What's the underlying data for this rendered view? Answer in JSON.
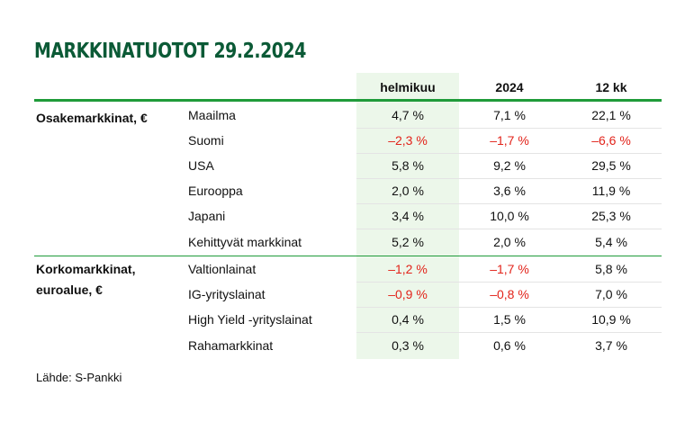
{
  "title": "MARKKINATUOTOT 29.2.2024",
  "columns": [
    "helmikuu",
    "2024",
    "12 kk"
  ],
  "groups": [
    {
      "label_lines": [
        "Osakemarkkinat, €"
      ],
      "rows": [
        {
          "label": "Maailma",
          "values": [
            "4,7 %",
            "7,1 %",
            "22,1 %"
          ],
          "negative": [
            false,
            false,
            false
          ]
        },
        {
          "label": "Suomi",
          "values": [
            "–2,3 %",
            "–1,7 %",
            "–6,6 %"
          ],
          "negative": [
            true,
            true,
            true
          ]
        },
        {
          "label": "USA",
          "values": [
            "5,8 %",
            "9,2 %",
            "29,5 %"
          ],
          "negative": [
            false,
            false,
            false
          ]
        },
        {
          "label": "Eurooppa",
          "values": [
            "2,0 %",
            "3,6 %",
            "11,9 %"
          ],
          "negative": [
            false,
            false,
            false
          ]
        },
        {
          "label": "Japani",
          "values": [
            "3,4 %",
            "10,0 %",
            "25,3 %"
          ],
          "negative": [
            false,
            false,
            false
          ]
        },
        {
          "label": "Kehittyvät markkinat",
          "values": [
            "5,2 %",
            "2,0 %",
            "5,4 %"
          ],
          "negative": [
            false,
            false,
            false
          ]
        }
      ]
    },
    {
      "label_lines": [
        "Korkomarkkinat,",
        "euroalue, €"
      ],
      "rows": [
        {
          "label": "Valtionlainat",
          "values": [
            "–1,2 %",
            "–1,7 %",
            "5,8 %"
          ],
          "negative": [
            true,
            true,
            false
          ]
        },
        {
          "label": "IG-yrityslainat",
          "values": [
            "–0,9 %",
            "–0,8 %",
            "7,0 %"
          ],
          "negative": [
            true,
            true,
            false
          ]
        },
        {
          "label": "High Yield -yrityslainat",
          "values": [
            "0,4 %",
            "1,5 %",
            "10,9 %"
          ],
          "negative": [
            false,
            false,
            false
          ]
        },
        {
          "label": "Rahamarkkinat",
          "values": [
            "0,3 %",
            "0,6 %",
            "3,7 %"
          ],
          "negative": [
            false,
            false,
            false
          ]
        }
      ]
    }
  ],
  "source": "Lähde: S-Pankki",
  "colors": {
    "title": "#0b5a36",
    "rule": "#1f9b3a",
    "highlight": "#ecf7ea",
    "negative": "#e2231a"
  }
}
